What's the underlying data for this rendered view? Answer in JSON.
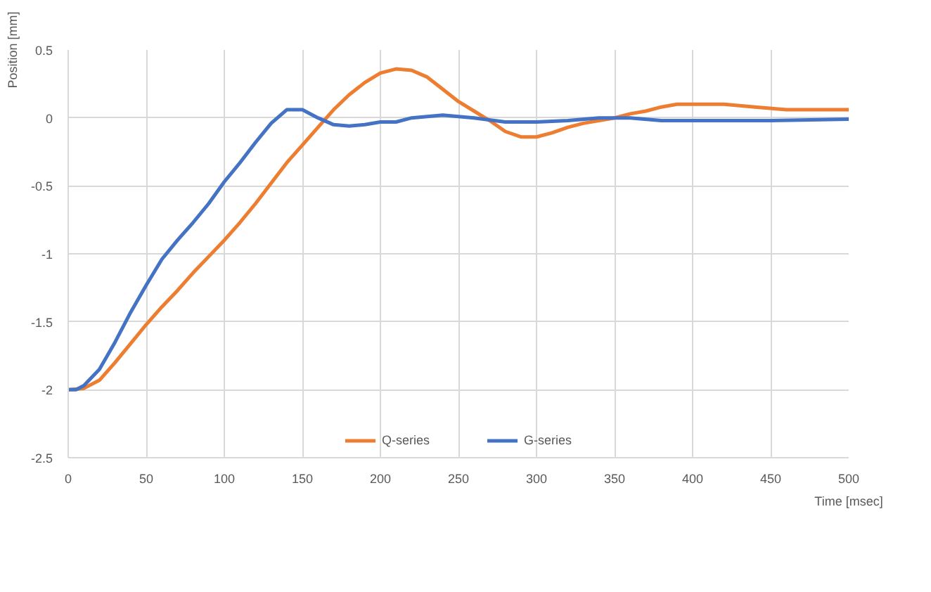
{
  "chart_data": {
    "type": "line",
    "xlabel": "Time [msec]",
    "ylabel": "Position [mm]",
    "xlim": [
      0,
      500
    ],
    "xticks": [
      0,
      50,
      100,
      150,
      200,
      250,
      300,
      350,
      400,
      450,
      500
    ],
    "ylim": [
      -2.5,
      0.5
    ],
    "yticks": [
      -2.5,
      -2,
      -1.5,
      -1,
      -0.5,
      0,
      0.5
    ],
    "grid": true,
    "legend": "bottom",
    "marker": "none",
    "line_style": "solid",
    "series": [
      {
        "name": "Q-series",
        "color": "#ed7d31",
        "x": [
          0,
          10,
          20,
          30,
          40,
          50,
          60,
          70,
          80,
          90,
          100,
          110,
          120,
          130,
          140,
          150,
          160,
          170,
          180,
          190,
          200,
          210,
          220,
          230,
          240,
          250,
          260,
          270,
          280,
          290,
          300,
          310,
          320,
          330,
          340,
          350,
          360,
          370,
          380,
          390,
          400,
          420,
          440,
          460,
          480,
          500
        ],
        "values": [
          -2,
          -1.99,
          -1.93,
          -1.8,
          -1.66,
          -1.52,
          -1.39,
          -1.27,
          -1.14,
          -1.02,
          -0.9,
          -0.77,
          -0.63,
          -0.48,
          -0.33,
          -0.2,
          -0.07,
          0.06,
          0.17,
          0.26,
          0.33,
          0.36,
          0.35,
          0.3,
          0.21,
          0.12,
          0.05,
          -0.02,
          -0.1,
          -0.14,
          -0.14,
          -0.11,
          -0.07,
          -0.04,
          -0.02,
          0.0,
          0.03,
          0.05,
          0.08,
          0.1,
          0.1,
          0.1,
          0.08,
          0.06,
          0.06,
          0.06
        ]
      },
      {
        "name": "G-series",
        "color": "#4472c4",
        "x": [
          0,
          5,
          10,
          20,
          30,
          40,
          50,
          60,
          70,
          80,
          90,
          100,
          110,
          120,
          130,
          140,
          150,
          160,
          170,
          180,
          190,
          200,
          210,
          220,
          240,
          260,
          280,
          300,
          320,
          340,
          360,
          380,
          400,
          450,
          500
        ],
        "values": [
          -2,
          -2,
          -1.97,
          -1.85,
          -1.65,
          -1.43,
          -1.23,
          -1.04,
          -0.9,
          -0.77,
          -0.63,
          -0.47,
          -0.33,
          -0.18,
          -0.04,
          0.06,
          0.06,
          0.0,
          -0.05,
          -0.06,
          -0.05,
          -0.03,
          -0.03,
          0.0,
          0.02,
          0.0,
          -0.03,
          -0.03,
          -0.02,
          0.0,
          0.0,
          -0.02,
          -0.02,
          -0.02,
          -0.01
        ]
      }
    ]
  }
}
